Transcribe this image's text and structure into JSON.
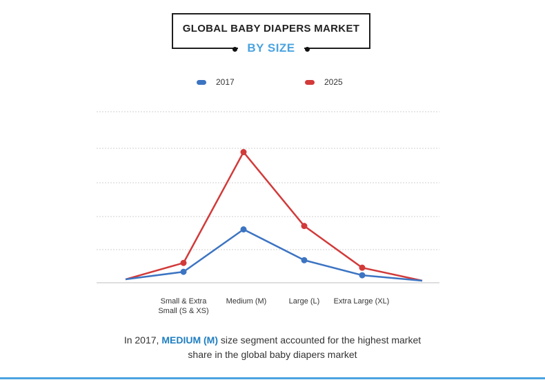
{
  "header": {
    "title": "GLOBAL BABY DIAPERS MARKET",
    "subtitle": "BY SIZE"
  },
  "caption": {
    "prefix": "In 2017, ",
    "highlight": "MEDIUM (M)",
    "suffix_line1": " size segment accounted for the highest market",
    "line2": "share in the global baby diapers market"
  },
  "colors": {
    "series_2017": "#3c74c2",
    "series_2025": "#d23a3a",
    "subtitle": "#4aa3df",
    "highlight": "#1f7ec2"
  },
  "chart_data": {
    "type": "line",
    "x_tick_labels": [
      "Small & Extra Small (S & XS)",
      "Medium (M)",
      "Large (L)",
      "Extra Large (XL)"
    ],
    "series": [
      {
        "name": "2017",
        "values": [
          0.5,
          1.6,
          7.8,
          3.3,
          1.1,
          0.3
        ]
      },
      {
        "name": "2025",
        "values": [
          0.5,
          2.9,
          19.1,
          8.3,
          2.2,
          0.3
        ]
      }
    ],
    "ylim": [
      0,
      25
    ],
    "grid": true,
    "legend_position": "top"
  }
}
